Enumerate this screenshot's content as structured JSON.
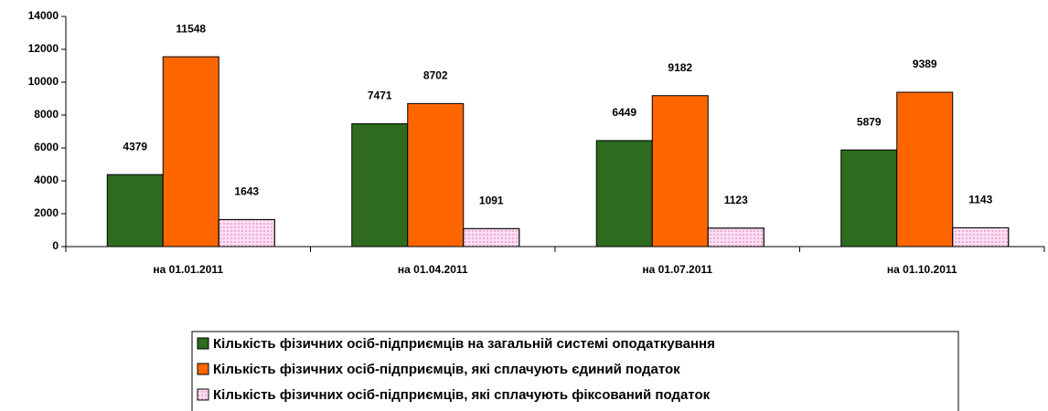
{
  "chart_data": {
    "type": "bar",
    "categories": [
      "на 01.01.2011",
      "на 01.04.2011",
      "на 01.07.2011",
      "на 01.10.2011"
    ],
    "series": [
      {
        "name": "Кількість фізичних осіб-підприємців на загальній системі оподаткування",
        "color": "#2e6b1f",
        "values": [
          4379,
          7471,
          6449,
          5879
        ]
      },
      {
        "name": "Кількість фізичних осіб-підприємців, які сплачують єдиний податок",
        "color": "#ff6600",
        "values": [
          11548,
          8702,
          9182,
          9389
        ]
      },
      {
        "name": "Кількість фізичних осіб-підприємців, які сплачують фіксований податок",
        "color": "#ffccee",
        "values": [
          1643,
          1091,
          1123,
          1143
        ]
      }
    ],
    "ylim": [
      0,
      14000
    ],
    "yticks": [
      0,
      2000,
      4000,
      6000,
      8000,
      10000,
      12000,
      14000
    ],
    "legend": "bottom"
  }
}
